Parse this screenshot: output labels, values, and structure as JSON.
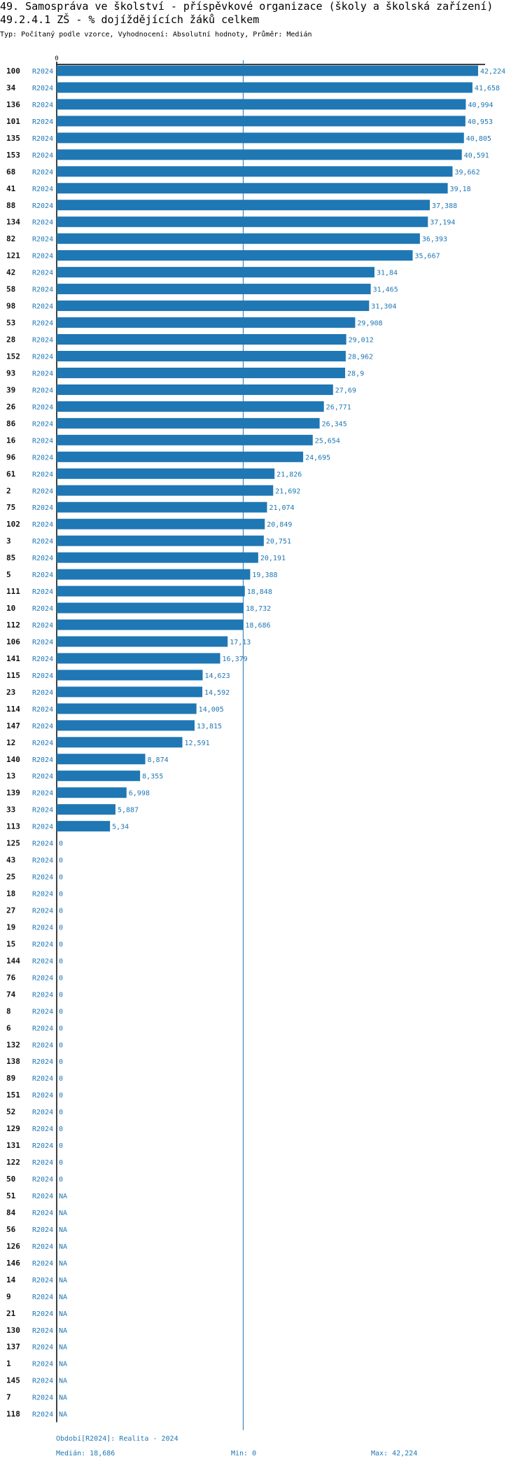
{
  "header": {
    "title": "49. Samospráva ve školství - příspěvkové organizace (školy a školská zařízení)",
    "subtitle": "49.2.4.1 ZŠ - % dojíždějících žáků celkem",
    "type_line": "Typ: Počítaný podle vzorce, Vyhodnocení: Absolutní hodnoty, Průměr: Medián"
  },
  "colors": {
    "bar": "#1f77b4",
    "median_line": "#1f77b4",
    "axis": "#000000"
  },
  "chart_data": {
    "type": "bar",
    "orientation": "horizontal",
    "series_label": "R2024",
    "axis_zero_label": "0",
    "xlim": [
      0,
      42.224
    ],
    "median": 18.686,
    "rows": [
      {
        "id": "100",
        "value": 42.224,
        "label": "42,224"
      },
      {
        "id": "34",
        "value": 41.658,
        "label": "41,658"
      },
      {
        "id": "136",
        "value": 40.994,
        "label": "40,994"
      },
      {
        "id": "101",
        "value": 40.953,
        "label": "40,953"
      },
      {
        "id": "135",
        "value": 40.805,
        "label": "40,805"
      },
      {
        "id": "153",
        "value": 40.591,
        "label": "40,591"
      },
      {
        "id": "68",
        "value": 39.662,
        "label": "39,662"
      },
      {
        "id": "41",
        "value": 39.18,
        "label": "39,18"
      },
      {
        "id": "88",
        "value": 37.388,
        "label": "37,388"
      },
      {
        "id": "134",
        "value": 37.194,
        "label": "37,194"
      },
      {
        "id": "82",
        "value": 36.393,
        "label": "36,393"
      },
      {
        "id": "121",
        "value": 35.667,
        "label": "35,667"
      },
      {
        "id": "42",
        "value": 31.84,
        "label": "31,84"
      },
      {
        "id": "58",
        "value": 31.465,
        "label": "31,465"
      },
      {
        "id": "98",
        "value": 31.304,
        "label": "31,304"
      },
      {
        "id": "53",
        "value": 29.908,
        "label": "29,908"
      },
      {
        "id": "28",
        "value": 29.012,
        "label": "29,012"
      },
      {
        "id": "152",
        "value": 28.962,
        "label": "28,962"
      },
      {
        "id": "93",
        "value": 28.9,
        "label": "28,9"
      },
      {
        "id": "39",
        "value": 27.69,
        "label": "27,69"
      },
      {
        "id": "26",
        "value": 26.771,
        "label": "26,771"
      },
      {
        "id": "86",
        "value": 26.345,
        "label": "26,345"
      },
      {
        "id": "16",
        "value": 25.654,
        "label": "25,654"
      },
      {
        "id": "96",
        "value": 24.695,
        "label": "24,695"
      },
      {
        "id": "61",
        "value": 21.826,
        "label": "21,826"
      },
      {
        "id": "2",
        "value": 21.692,
        "label": "21,692"
      },
      {
        "id": "75",
        "value": 21.074,
        "label": "21,074"
      },
      {
        "id": "102",
        "value": 20.849,
        "label": "20,849"
      },
      {
        "id": "3",
        "value": 20.751,
        "label": "20,751"
      },
      {
        "id": "85",
        "value": 20.191,
        "label": "20,191"
      },
      {
        "id": "5",
        "value": 19.388,
        "label": "19,388"
      },
      {
        "id": "111",
        "value": 18.848,
        "label": "18,848"
      },
      {
        "id": "10",
        "value": 18.732,
        "label": "18,732"
      },
      {
        "id": "112",
        "value": 18.686,
        "label": "18,686"
      },
      {
        "id": "106",
        "value": 17.13,
        "label": "17,13"
      },
      {
        "id": "141",
        "value": 16.379,
        "label": "16,379"
      },
      {
        "id": "115",
        "value": 14.623,
        "label": "14,623"
      },
      {
        "id": "23",
        "value": 14.592,
        "label": "14,592"
      },
      {
        "id": "114",
        "value": 14.005,
        "label": "14,005"
      },
      {
        "id": "147",
        "value": 13.815,
        "label": "13,815"
      },
      {
        "id": "12",
        "value": 12.591,
        "label": "12,591"
      },
      {
        "id": "140",
        "value": 8.874,
        "label": "8,874"
      },
      {
        "id": "13",
        "value": 8.355,
        "label": "8,355"
      },
      {
        "id": "139",
        "value": 6.998,
        "label": "6,998"
      },
      {
        "id": "33",
        "value": 5.887,
        "label": "5,887"
      },
      {
        "id": "113",
        "value": 5.34,
        "label": "5,34"
      },
      {
        "id": "125",
        "value": 0,
        "label": "0"
      },
      {
        "id": "43",
        "value": 0,
        "label": "0"
      },
      {
        "id": "25",
        "value": 0,
        "label": "0"
      },
      {
        "id": "18",
        "value": 0,
        "label": "0"
      },
      {
        "id": "27",
        "value": 0,
        "label": "0"
      },
      {
        "id": "19",
        "value": 0,
        "label": "0"
      },
      {
        "id": "15",
        "value": 0,
        "label": "0"
      },
      {
        "id": "144",
        "value": 0,
        "label": "0"
      },
      {
        "id": "76",
        "value": 0,
        "label": "0"
      },
      {
        "id": "74",
        "value": 0,
        "label": "0"
      },
      {
        "id": "8",
        "value": 0,
        "label": "0"
      },
      {
        "id": "6",
        "value": 0,
        "label": "0"
      },
      {
        "id": "132",
        "value": 0,
        "label": "0"
      },
      {
        "id": "138",
        "value": 0,
        "label": "0"
      },
      {
        "id": "89",
        "value": 0,
        "label": "0"
      },
      {
        "id": "151",
        "value": 0,
        "label": "0"
      },
      {
        "id": "52",
        "value": 0,
        "label": "0"
      },
      {
        "id": "129",
        "value": 0,
        "label": "0"
      },
      {
        "id": "131",
        "value": 0,
        "label": "0"
      },
      {
        "id": "122",
        "value": 0,
        "label": "0"
      },
      {
        "id": "50",
        "value": 0,
        "label": "0"
      },
      {
        "id": "51",
        "value": null,
        "label": "NA"
      },
      {
        "id": "84",
        "value": null,
        "label": "NA"
      },
      {
        "id": "56",
        "value": null,
        "label": "NA"
      },
      {
        "id": "126",
        "value": null,
        "label": "NA"
      },
      {
        "id": "146",
        "value": null,
        "label": "NA"
      },
      {
        "id": "14",
        "value": null,
        "label": "NA"
      },
      {
        "id": "9",
        "value": null,
        "label": "NA"
      },
      {
        "id": "21",
        "value": null,
        "label": "NA"
      },
      {
        "id": "130",
        "value": null,
        "label": "NA"
      },
      {
        "id": "137",
        "value": null,
        "label": "NA"
      },
      {
        "id": "1",
        "value": null,
        "label": "NA"
      },
      {
        "id": "145",
        "value": null,
        "label": "NA"
      },
      {
        "id": "7",
        "value": null,
        "label": "NA"
      },
      {
        "id": "118",
        "value": null,
        "label": "NA"
      }
    ]
  },
  "footer": {
    "period": "Období[R2024]: Realita - 2024",
    "median": "Medián: 18,686",
    "min": "Min: 0",
    "max": "Max: 42,224"
  }
}
